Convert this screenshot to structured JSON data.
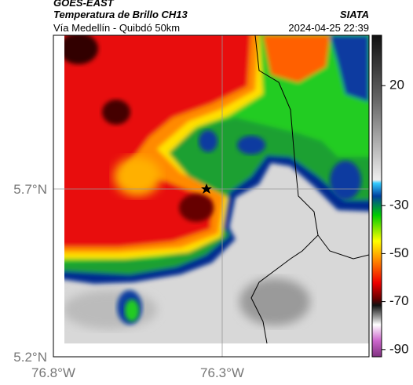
{
  "header": {
    "satellite": "GOES-EAST",
    "title": "Temperatura de Brillo CH13",
    "source": "SIATA",
    "subtitle": "Vía Medellín - Quibdó 50km",
    "timestamp": "2024-04-25 22:39"
  },
  "map": {
    "lat_labels": [
      "5.7°N",
      "5.2°N"
    ],
    "lon_labels": [
      "76.8°W",
      "76.3°W"
    ]
  },
  "colorbar": {
    "range": [
      41,
      -93
    ],
    "ticks": [
      20,
      -30,
      -50,
      -70,
      -90
    ]
  }
}
